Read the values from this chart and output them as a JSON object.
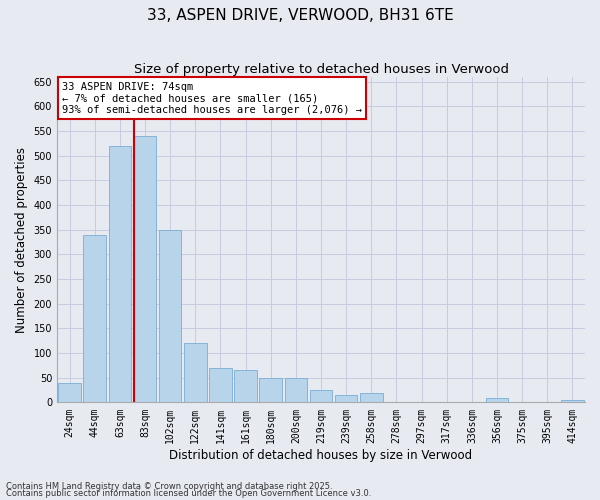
{
  "title": "33, ASPEN DRIVE, VERWOOD, BH31 6TE",
  "subtitle": "Size of property relative to detached houses in Verwood",
  "xlabel": "Distribution of detached houses by size in Verwood",
  "ylabel": "Number of detached properties",
  "categories": [
    "24sqm",
    "44sqm",
    "63sqm",
    "83sqm",
    "102sqm",
    "122sqm",
    "141sqm",
    "161sqm",
    "180sqm",
    "200sqm",
    "219sqm",
    "239sqm",
    "258sqm",
    "278sqm",
    "297sqm",
    "317sqm",
    "336sqm",
    "356sqm",
    "375sqm",
    "395sqm",
    "414sqm"
  ],
  "values": [
    40,
    340,
    520,
    540,
    350,
    120,
    70,
    65,
    50,
    50,
    25,
    15,
    20,
    0,
    0,
    0,
    0,
    10,
    0,
    0,
    5
  ],
  "bar_color": "#b8d4ea",
  "bar_edge_color": "#7aaed6",
  "grid_color": "#c8cce0",
  "background_color": "#e8eaf2",
  "vline_color": "#cc0000",
  "vline_pos": 2.58,
  "annotation_text": "33 ASPEN DRIVE: 74sqm\n← 7% of detached houses are smaller (165)\n93% of semi-detached houses are larger (2,076) →",
  "ann_box_facecolor": "#ffffff",
  "ann_box_edgecolor": "#cc0000",
  "ylim": [
    0,
    660
  ],
  "yticks": [
    0,
    50,
    100,
    150,
    200,
    250,
    300,
    350,
    400,
    450,
    500,
    550,
    600,
    650
  ],
  "footnote1": "Contains HM Land Registry data © Crown copyright and database right 2025.",
  "footnote2": "Contains public sector information licensed under the Open Government Licence v3.0.",
  "title_fontsize": 11,
  "subtitle_fontsize": 9.5,
  "ylabel_fontsize": 8.5,
  "xlabel_fontsize": 8.5,
  "tick_fontsize": 7,
  "ann_fontsize": 7.5,
  "footnote_fontsize": 6
}
